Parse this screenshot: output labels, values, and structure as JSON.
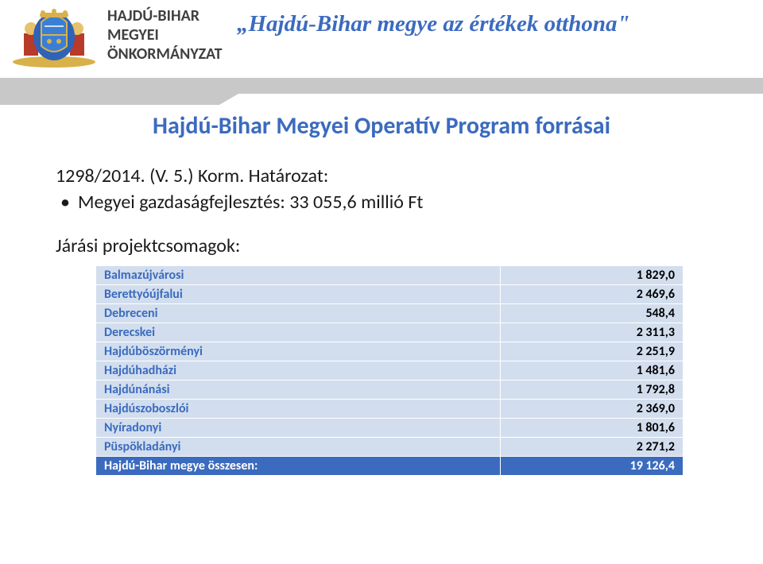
{
  "header": {
    "org_line1": "HAJDÚ-BIHAR",
    "org_line2": "MEGYEI",
    "org_line3": "ÖNKORMÁNYZAT",
    "org_color": "#404040",
    "tagline": "„Hajdú-Bihar megye az értékek otthona\"",
    "tagline_color": "#3b6bbf"
  },
  "content": {
    "title": "Hajdú-Bihar Megyei Operatív Program forrásai",
    "title_color": "#3b6bbf",
    "decree": "1298/2014. (V. 5.) Korm. Határozat:",
    "bullet1": "Megyei gazdaságfejlesztés: 33 055,6 millió Ft",
    "subheading": "Járási projektcsomagok:"
  },
  "table": {
    "row_bg": "#d2deee",
    "row_label_color": "#3b6bbf",
    "row_value_color": "#000000",
    "total_bg": "#3b6bbf",
    "total_color": "#ffffff",
    "rows": [
      {
        "label": "Balmazújvárosi",
        "value": "1 829,0"
      },
      {
        "label": "Berettyóújfalui",
        "value": "2 469,6"
      },
      {
        "label": "Debreceni",
        "value": "548,4"
      },
      {
        "label": "Derecskei",
        "value": "2 311,3"
      },
      {
        "label": "Hajdúböszörményi",
        "value": "2 251,9"
      },
      {
        "label": "Hajdúhadházi",
        "value": "1 481,6"
      },
      {
        "label": "Hajdúnánási",
        "value": "1 792,8"
      },
      {
        "label": "Hajdúszoboszlói",
        "value": "2 369,0"
      },
      {
        "label": "Nyíradonyi",
        "value": "1 801,6"
      },
      {
        "label": "Püspökladányi",
        "value": "2 271,2"
      }
    ],
    "total": {
      "label": "Hajdú-Bihar megye összesen:",
      "value": "19 126,4"
    }
  }
}
